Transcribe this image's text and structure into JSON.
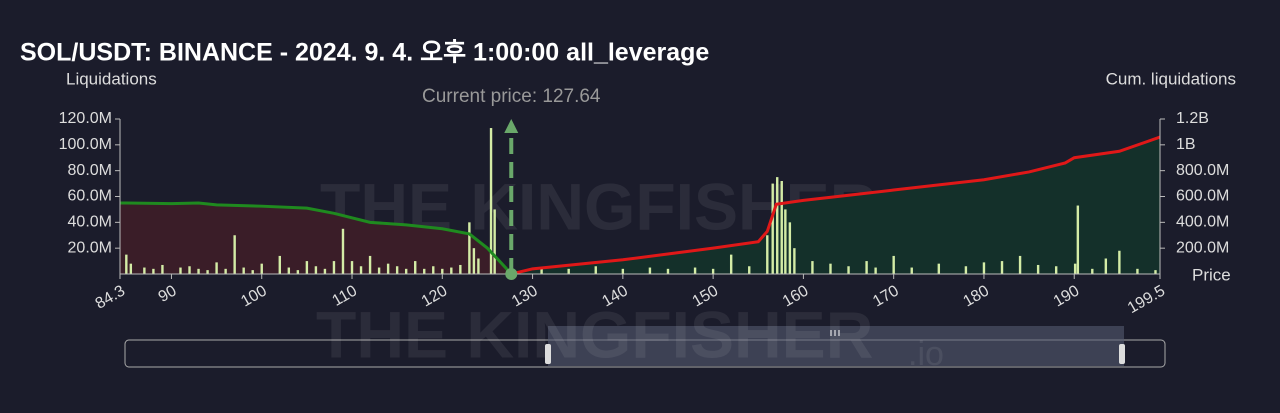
{
  "chart_data": {
    "type": "liquidation",
    "title": "SOL/USDT: BINANCE - 2024. 9. 4. 오후 1:00:00 all_leverage",
    "y_label": "Liquidations",
    "y2_label": "Cum. liquidations",
    "x_label": "Price",
    "annotation": {
      "label": "Current price: 127.64",
      "x": 127.64
    },
    "watermark": [
      "THE KINGFISHER",
      ".io"
    ],
    "xlim": [
      84.3,
      199.5
    ],
    "xticks": [
      84.3,
      90,
      100,
      110,
      120,
      130,
      140,
      150,
      160,
      170,
      180,
      190,
      199.5
    ],
    "ylim": [
      0,
      120000000
    ],
    "yticks": [
      {
        "value": 20000000,
        "label": "20.0M"
      },
      {
        "value": 40000000,
        "label": "40.0M"
      },
      {
        "value": 60000000,
        "label": "60.0M"
      },
      {
        "value": 80000000,
        "label": "80.0M"
      },
      {
        "value": 100000000,
        "label": "100.0M"
      },
      {
        "value": 120000000,
        "label": "120.0M"
      }
    ],
    "y2lim": [
      0,
      1200000000
    ],
    "y2ticks": [
      {
        "value": 200000000,
        "label": "200.0M"
      },
      {
        "value": 400000000,
        "label": "400.0M"
      },
      {
        "value": 600000000,
        "label": "600.0M"
      },
      {
        "value": 800000000,
        "label": "800.0M"
      },
      {
        "value": 1000000000,
        "label": "1B"
      },
      {
        "value": 1200000000,
        "label": "1.2B"
      }
    ],
    "bars": {
      "color": "#d4eca6",
      "x": [
        85,
        85.5,
        87,
        88,
        89,
        91,
        92,
        93,
        94,
        95,
        96,
        97,
        98,
        99,
        100,
        102,
        103,
        104,
        105,
        106,
        107,
        108,
        109,
        110,
        111,
        112,
        113,
        114,
        115,
        116,
        117,
        118,
        119,
        120,
        121,
        122,
        123,
        123.5,
        124,
        125.4,
        125.8,
        131,
        134,
        137,
        140,
        143,
        145,
        148,
        150,
        152,
        154,
        156,
        156.6,
        157.1,
        157.6,
        158,
        158.5,
        159,
        161,
        163,
        165,
        167,
        168,
        170,
        172,
        175,
        178,
        180,
        182,
        184,
        186,
        188,
        190.1,
        190.4,
        192,
        193.5,
        195,
        197,
        199
      ],
      "values": [
        15000000,
        8000000,
        5000000,
        4000000,
        7000000,
        5000000,
        6000000,
        4000000,
        3000000,
        9000000,
        4000000,
        30000000,
        5000000,
        3000000,
        8000000,
        14000000,
        5000000,
        3000000,
        10000000,
        6000000,
        4000000,
        10000000,
        35000000,
        10000000,
        6000000,
        14000000,
        5000000,
        8000000,
        6000000,
        4000000,
        10000000,
        4000000,
        6000000,
        4000000,
        5000000,
        7000000,
        40000000,
        20000000,
        12000000,
        113000000,
        50000000,
        5000000,
        4000000,
        6000000,
        4000000,
        5000000,
        4000000,
        5000000,
        4000000,
        15000000,
        6000000,
        30000000,
        70000000,
        75000000,
        72000000,
        50000000,
        40000000,
        20000000,
        10000000,
        8000000,
        6000000,
        10000000,
        5000000,
        14000000,
        5000000,
        8000000,
        6000000,
        9000000,
        10000000,
        14000000,
        7000000,
        6000000,
        8000000,
        53000000,
        4000000,
        12000000,
        18000000,
        4000000,
        3000000
      ]
    },
    "series": [
      {
        "axis": "y2",
        "color": "#1f8a1f",
        "fill": "#3a1d28",
        "x": [
          84.3,
          90,
          93,
          95,
          100,
          105,
          108,
          112,
          116,
          120,
          123,
          125,
          127,
          127.64
        ],
        "values": [
          550000000,
          545000000,
          550000000,
          535000000,
          525000000,
          510000000,
          470000000,
          400000000,
          380000000,
          350000000,
          310000000,
          200000000,
          50000000,
          0
        ]
      },
      {
        "axis": "y2",
        "color": "#e01818",
        "fill": "#14302a",
        "x": [
          127.64,
          130,
          140,
          150,
          155,
          156,
          157,
          160,
          165,
          170,
          175,
          180,
          185,
          189,
          190,
          195,
          199.5
        ],
        "values": [
          0,
          40000000,
          110000000,
          200000000,
          250000000,
          330000000,
          540000000,
          570000000,
          610000000,
          650000000,
          690000000,
          730000000,
          790000000,
          860000000,
          900000000,
          950000000,
          1060000000
        ]
      }
    ]
  }
}
